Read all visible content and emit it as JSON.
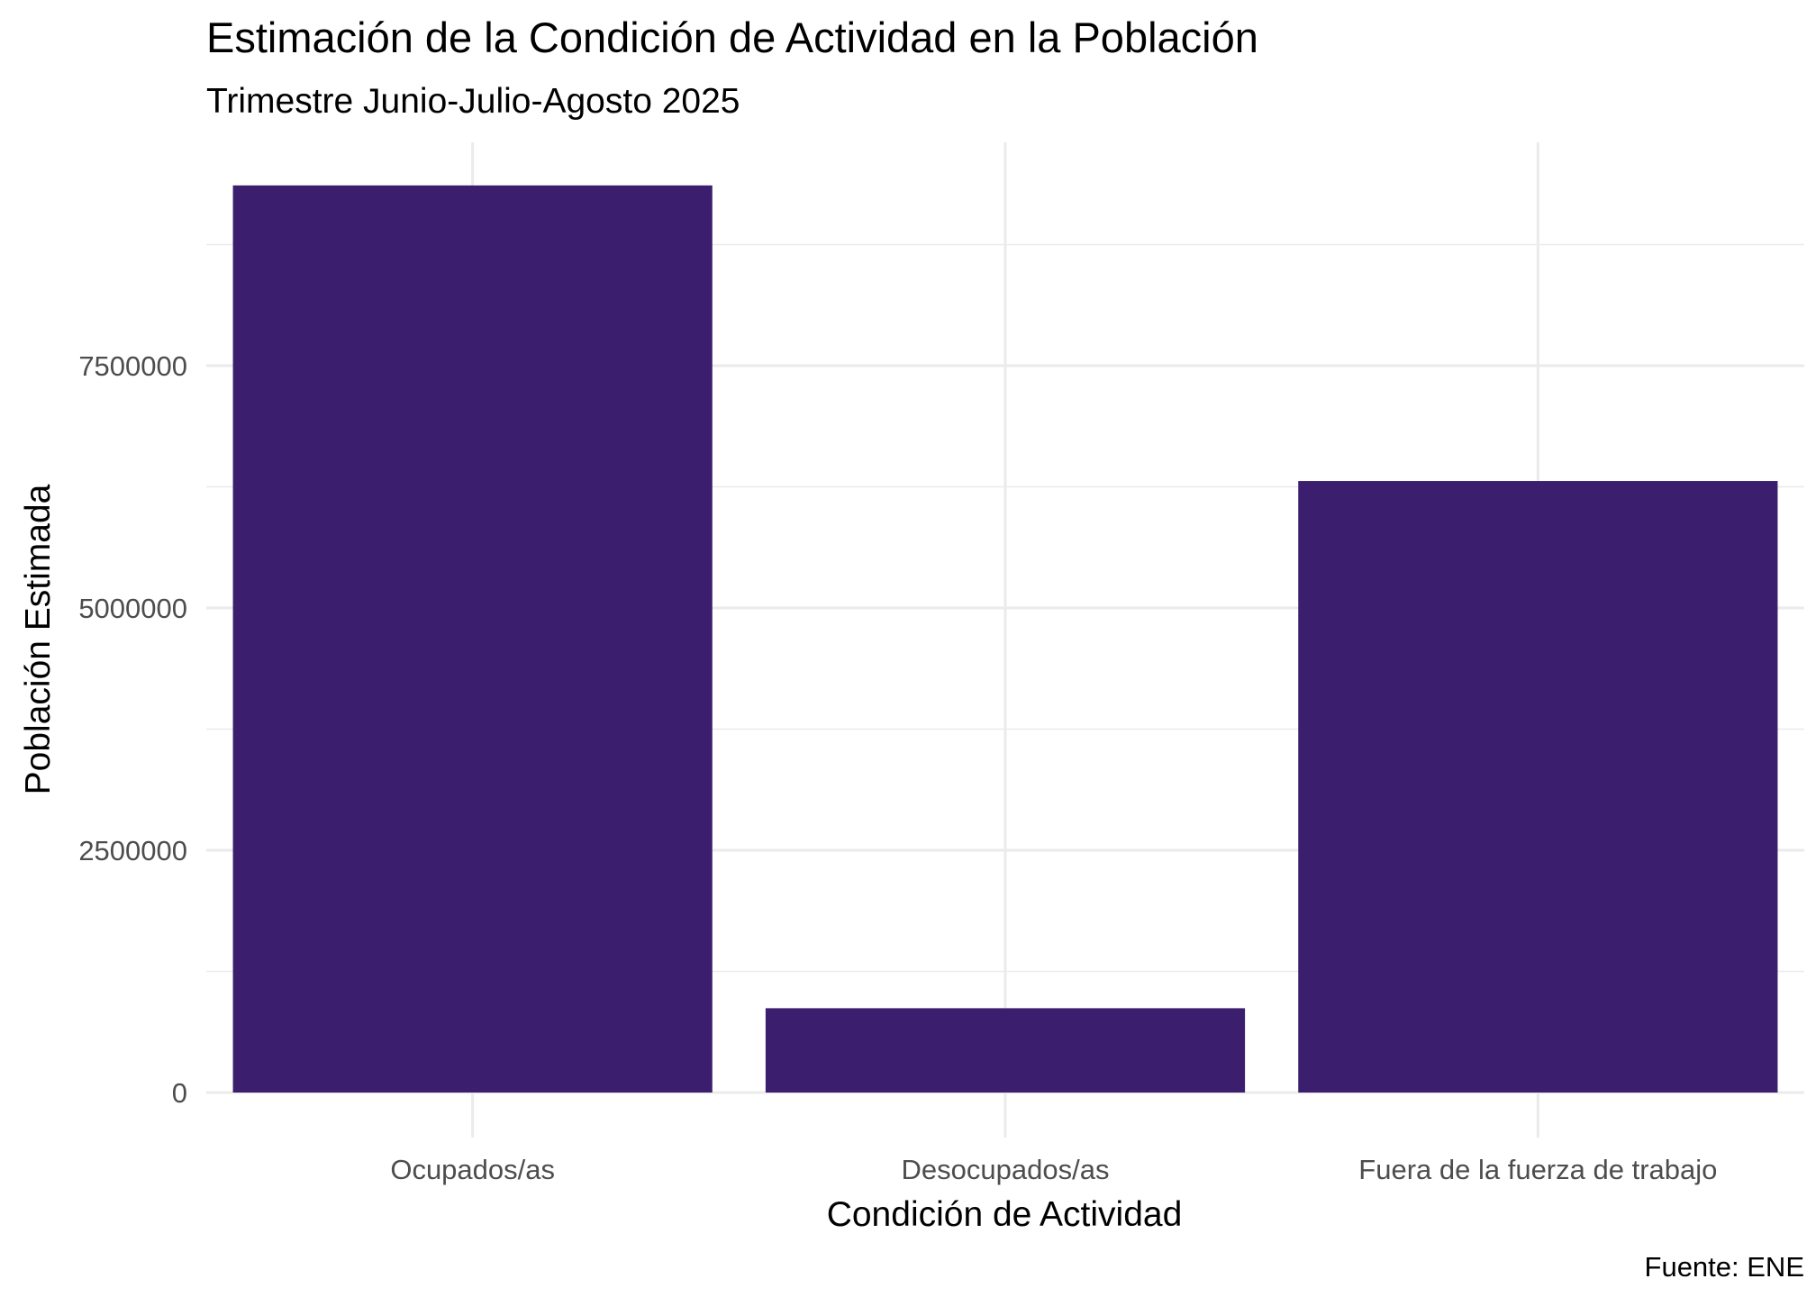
{
  "chart_data": {
    "type": "bar",
    "title": "Estimación de la Condición de Actividad en la Población",
    "subtitle": "Trimestre Junio-Julio-Agosto 2025",
    "xlabel": "Condición de Actividad",
    "ylabel": "Población Estimada",
    "caption": "Fuente: ENE",
    "categories": [
      "Ocupados/as",
      "Desocupados/as",
      "Fuera de la fuerza de trabajo"
    ],
    "values": [
      9360000,
      870000,
      6310000
    ],
    "ylim": [
      0,
      9800000
    ],
    "yticks": [
      0,
      2500000,
      5000000,
      7500000
    ],
    "ytick_labels": [
      "0",
      "2500000",
      "5000000",
      "7500000"
    ],
    "bar_color": "#3B1E6E",
    "grid": true,
    "legend": "none"
  }
}
